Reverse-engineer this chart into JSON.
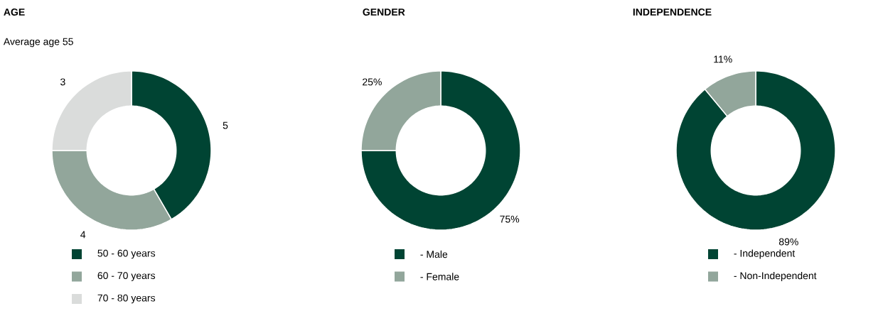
{
  "chart_data": [
    {
      "type": "donut",
      "title": "AGE",
      "subtitle": "Average age 55",
      "categories": [
        "50 - 60 years",
        "60 - 70 years",
        "70 - 80 years"
      ],
      "values": [
        5,
        4,
        3
      ],
      "colors": [
        "#004433",
        "#92a69b",
        "#dadcdb"
      ],
      "data_labels": true,
      "legend": "bottom"
    },
    {
      "type": "donut",
      "title": "GENDER",
      "categories": [
        "- Male",
        "- Female"
      ],
      "values": [
        75,
        25
      ],
      "value_labels": [
        "75%",
        "25%"
      ],
      "colors": [
        "#004433",
        "#92a69b"
      ],
      "legend": "bottom"
    },
    {
      "type": "donut",
      "title": "INDEPENDENCE",
      "categories": [
        "- Independent",
        "- Non-Independent"
      ],
      "values": [
        89,
        11
      ],
      "value_labels": [
        "89%",
        "11%"
      ],
      "colors": [
        "#004433",
        "#92a69b"
      ],
      "legend": "bottom"
    }
  ]
}
